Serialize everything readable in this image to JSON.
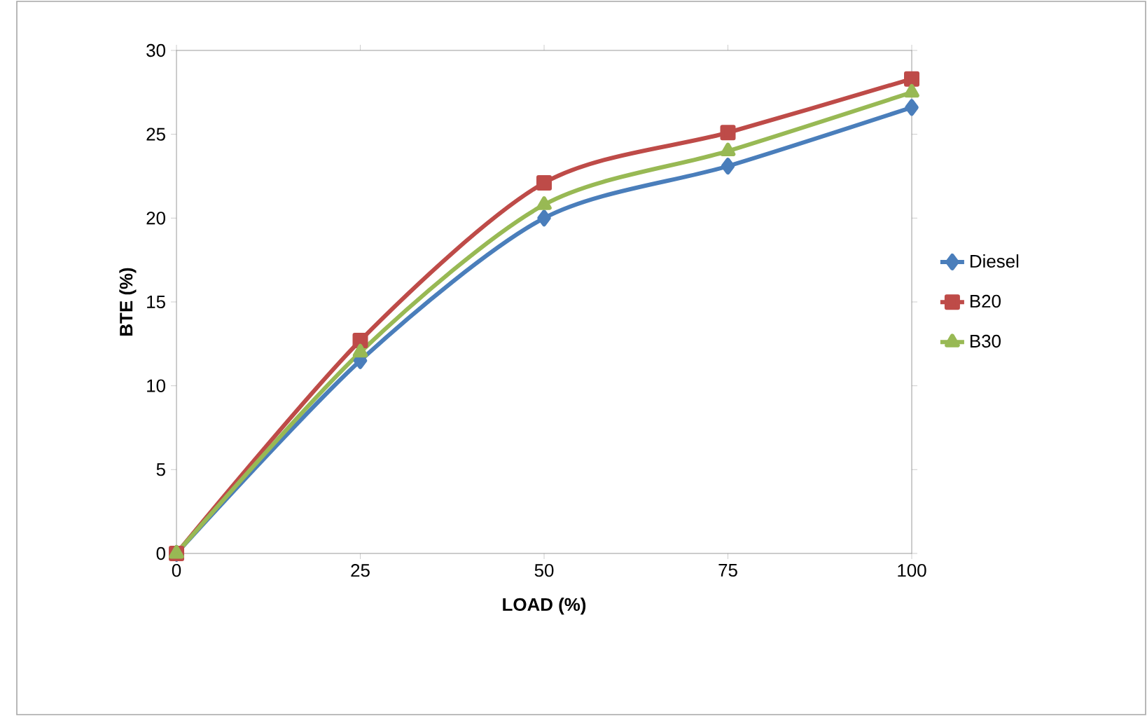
{
  "chart_data": {
    "type": "line",
    "xlabel": "LOAD (%)",
    "ylabel": "BTE (%)",
    "x": [
      0,
      25,
      50,
      75,
      100
    ],
    "series": [
      {
        "name": "Diesel",
        "color": "#4a7ebb",
        "marker": "diamond",
        "values": [
          0,
          11.5,
          20,
          23.1,
          26.6
        ]
      },
      {
        "name": "B20",
        "color": "#be4b48",
        "marker": "square",
        "values": [
          0,
          12.7,
          22.1,
          25.1,
          28.3
        ]
      },
      {
        "name": "B30",
        "color": "#98b954",
        "marker": "triangle",
        "values": [
          0,
          12,
          20.8,
          24,
          27.5
        ]
      }
    ],
    "xlim": [
      0,
      100
    ],
    "xticks": [
      0,
      25,
      50,
      75,
      100
    ],
    "ylim": [
      0,
      30
    ],
    "yticks": [
      0,
      5,
      10,
      15,
      20,
      25,
      30
    ],
    "grid": false,
    "legend": "right",
    "line_style": "solid"
  }
}
